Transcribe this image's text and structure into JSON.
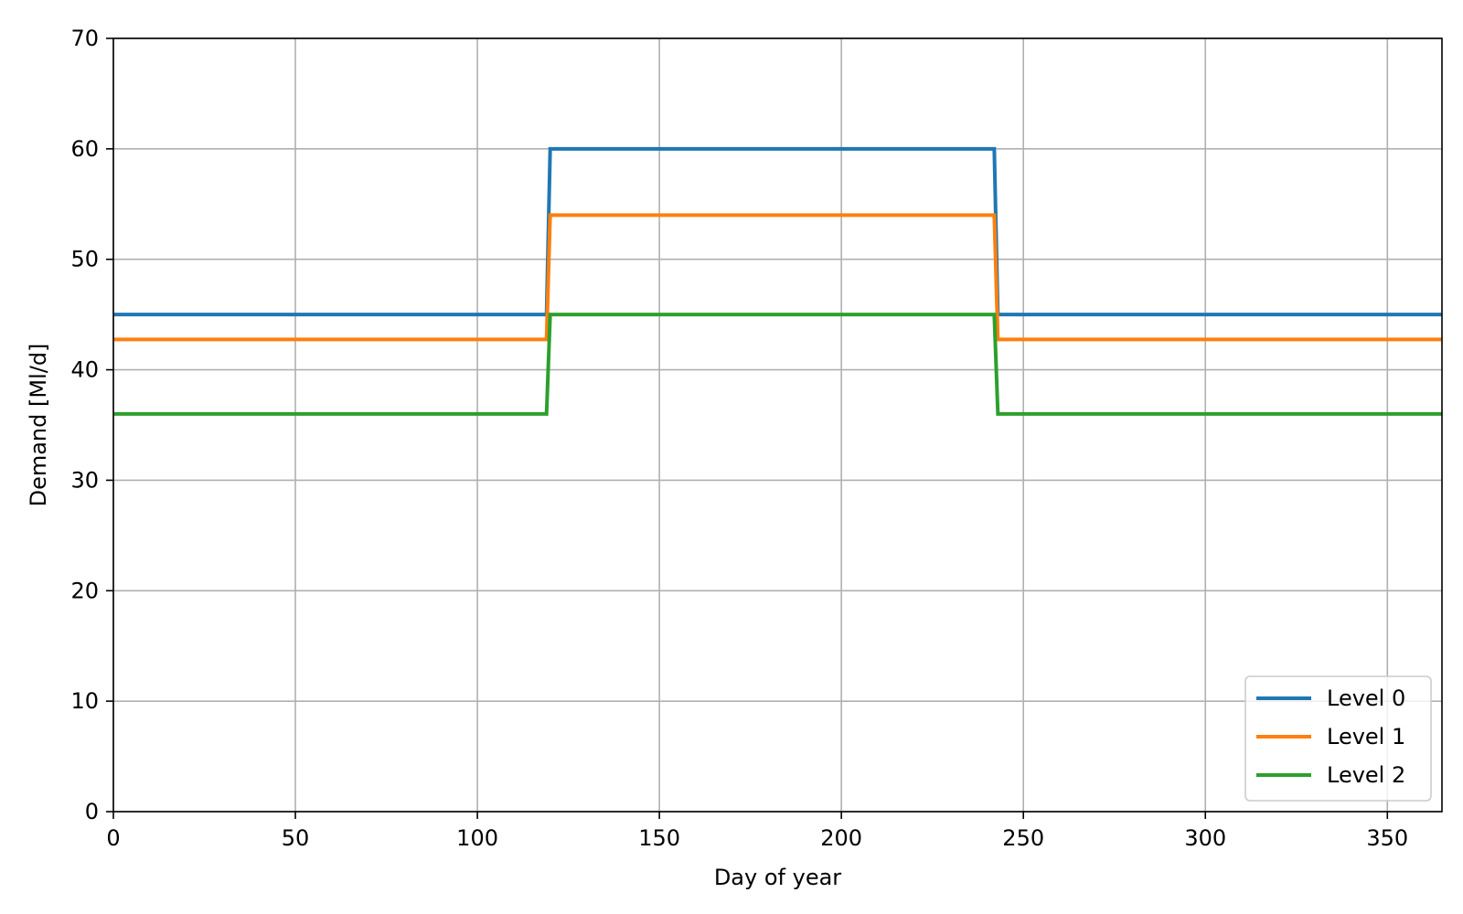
{
  "chart_data": {
    "type": "line",
    "title": "",
    "xlabel": "Day of year",
    "ylabel": "Demand [Ml/d]",
    "xlim": [
      0,
      365
    ],
    "ylim": [
      0,
      70
    ],
    "xticks": [
      0,
      50,
      100,
      150,
      200,
      250,
      300,
      350
    ],
    "yticks": [
      0,
      10,
      20,
      30,
      40,
      50,
      60,
      70
    ],
    "grid": true,
    "legend_position": "lower-right",
    "series": [
      {
        "name": "Level 0",
        "color": "#1f77b4",
        "x": [
          0,
          119,
          120,
          242,
          243,
          365
        ],
        "y": [
          45,
          45,
          60,
          60,
          45,
          45
        ]
      },
      {
        "name": "Level 1",
        "color": "#ff7f0e",
        "x": [
          0,
          119,
          120,
          242,
          243,
          365
        ],
        "y": [
          42.75,
          42.75,
          54,
          54,
          42.75,
          42.75
        ]
      },
      {
        "name": "Level 2",
        "color": "#2ca02c",
        "x": [
          0,
          119,
          120,
          242,
          243,
          365
        ],
        "y": [
          36,
          36,
          45,
          45,
          36,
          36
        ]
      }
    ]
  }
}
